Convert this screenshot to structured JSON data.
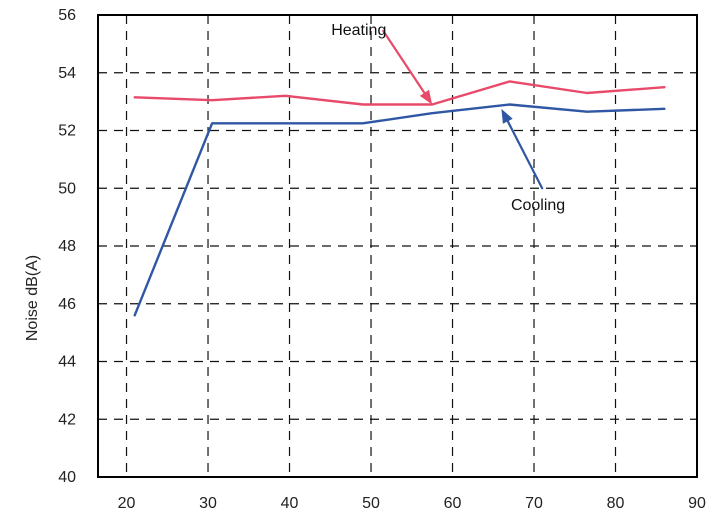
{
  "chart_data": {
    "type": "line",
    "title": "",
    "xlabel": "",
    "ylabel": "Noise dB(A)",
    "xlim": [
      16.5,
      90
    ],
    "ylim": [
      40,
      56
    ],
    "x_ticks": [
      20,
      30,
      40,
      50,
      60,
      70,
      80,
      90
    ],
    "y_ticks": [
      40,
      42,
      44,
      46,
      48,
      50,
      52,
      54,
      56
    ],
    "x_tick_labels": [
      "20",
      "30",
      "40",
      "50",
      "60",
      "70",
      "80",
      "90"
    ],
    "y_tick_labels": [
      "40",
      "42",
      "44",
      "46",
      "48",
      "50",
      "52",
      "54",
      "56"
    ],
    "grid": true,
    "grid_style": "dashed",
    "series": [
      {
        "name": "Heating",
        "color": "#e84a6a",
        "x": [
          21,
          30.5,
          39.5,
          49,
          57.5,
          67,
          76.5,
          86
        ],
        "y": [
          53.15,
          53.05,
          53.2,
          52.9,
          52.9,
          53.7,
          53.3,
          53.5
        ]
      },
      {
        "name": "Cooling",
        "color": "#2f57a4",
        "x": [
          21,
          30.5,
          39.5,
          49,
          57.5,
          67,
          76.5,
          86
        ],
        "y": [
          45.6,
          52.25,
          52.25,
          52.25,
          52.6,
          52.9,
          52.65,
          52.75
        ]
      }
    ],
    "annotations": [
      {
        "text": "Heating",
        "series": "Heating",
        "color": "#e84a6a",
        "arrow_to": [
          57.5,
          52.9
        ],
        "arrow_from": [
          51.5,
          55.45
        ],
        "label_at": [
          48.5,
          55.45
        ]
      },
      {
        "text": "Cooling",
        "series": "Cooling",
        "color": "#2f57a4",
        "arrow_to": [
          66,
          52.75
        ],
        "arrow_from": [
          71,
          50.0
        ],
        "label_at": [
          70.5,
          49.4
        ]
      }
    ]
  }
}
